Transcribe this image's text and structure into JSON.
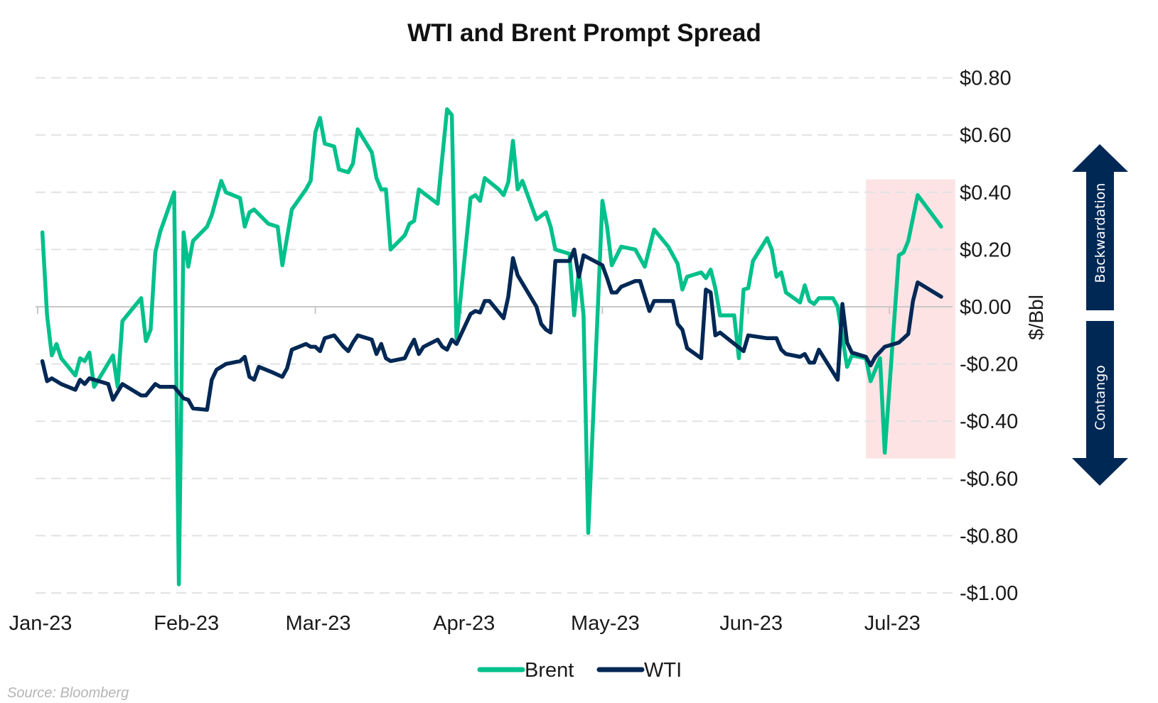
{
  "chart_data": {
    "type": "line",
    "title": "WTI and Brent Prompt Spread",
    "ylabel": "$/Bbl",
    "xlabel": "",
    "ylim": [
      -1.0,
      0.8
    ],
    "xlim": [
      "2023-01-01",
      "2023-07-15"
    ],
    "grid": true,
    "y_axis_side": "right",
    "legend_position": "bottom",
    "x_tick_labels": [
      "Jan-23",
      "Feb-23",
      "Mar-23",
      "Apr-23",
      "May-23",
      "Jun-23",
      "Jul-23"
    ],
    "x_tick_dates": [
      "2023-01-01",
      "2023-02-01",
      "2023-03-01",
      "2023-04-01",
      "2023-05-01",
      "2023-06-01",
      "2023-07-01"
    ],
    "y_ticks": [
      0.8,
      0.6,
      0.4,
      0.2,
      0.0,
      -0.2,
      -0.4,
      -0.6,
      -0.8,
      -1.0
    ],
    "y_tick_labels": [
      "$0.80",
      "$0.60",
      "$0.40",
      "$0.20",
      "$0.00",
      "-$0.20",
      "-$0.40",
      "-$0.60",
      "-$0.80",
      "-$1.00"
    ],
    "highlight": {
      "x_range": [
        "2023-06-26",
        "2023-07-15"
      ],
      "y_range": [
        -0.53,
        0.445
      ],
      "color": "#FDE3E4"
    },
    "annotations": {
      "up_arrow": "Backwardation",
      "down_arrow": "Contango",
      "arrow_color": "#002855"
    },
    "source": "Source: Bloomberg",
    "series": [
      {
        "name": "Brent",
        "color": "#00C08B",
        "points": [
          [
            "2023-01-02",
            0.26
          ],
          [
            "2023-01-03",
            -0.03
          ],
          [
            "2023-01-04",
            -0.17
          ],
          [
            "2023-01-05",
            -0.13
          ],
          [
            "2023-01-06",
            -0.18
          ],
          [
            "2023-01-09",
            -0.24
          ],
          [
            "2023-01-10",
            -0.18
          ],
          [
            "2023-01-11",
            -0.19
          ],
          [
            "2023-01-12",
            -0.16
          ],
          [
            "2023-01-13",
            -0.28
          ],
          [
            "2023-01-17",
            -0.17
          ],
          [
            "2023-01-18",
            -0.28
          ],
          [
            "2023-01-19",
            -0.05
          ],
          [
            "2023-01-23",
            0.03
          ],
          [
            "2023-01-24",
            -0.12
          ],
          [
            "2023-01-25",
            -0.08
          ],
          [
            "2023-01-26",
            0.19
          ],
          [
            "2023-01-27",
            0.26
          ],
          [
            "2023-01-30",
            0.4
          ],
          [
            "2023-01-31",
            -0.97
          ],
          [
            "2023-02-01",
            0.26
          ],
          [
            "2023-02-02",
            0.14
          ],
          [
            "2023-02-03",
            0.23
          ],
          [
            "2023-02-06",
            0.28
          ],
          [
            "2023-02-07",
            0.32
          ],
          [
            "2023-02-09",
            0.44
          ],
          [
            "2023-02-10",
            0.4
          ],
          [
            "2023-02-13",
            0.38
          ],
          [
            "2023-02-14",
            0.28
          ],
          [
            "2023-02-15",
            0.33
          ],
          [
            "2023-02-16",
            0.34
          ],
          [
            "2023-02-19",
            0.29
          ],
          [
            "2023-02-21",
            0.28
          ],
          [
            "2023-02-22",
            0.145
          ],
          [
            "2023-02-24",
            0.34
          ],
          [
            "2023-02-27",
            0.41
          ],
          [
            "2023-02-28",
            0.44
          ],
          [
            "2023-03-01",
            0.61
          ],
          [
            "2023-03-02",
            0.66
          ],
          [
            "2023-03-03",
            0.57
          ],
          [
            "2023-03-05",
            0.56
          ],
          [
            "2023-03-06",
            0.48
          ],
          [
            "2023-03-08",
            0.47
          ],
          [
            "2023-03-09",
            0.5
          ],
          [
            "2023-03-10",
            0.62
          ],
          [
            "2023-03-13",
            0.54
          ],
          [
            "2023-03-14",
            0.45
          ],
          [
            "2023-03-15",
            0.41
          ],
          [
            "2023-03-16",
            0.41
          ],
          [
            "2023-03-17",
            0.2
          ],
          [
            "2023-03-20",
            0.25
          ],
          [
            "2023-03-21",
            0.29
          ],
          [
            "2023-03-22",
            0.3
          ],
          [
            "2023-03-23",
            0.41
          ],
          [
            "2023-03-27",
            0.36
          ],
          [
            "2023-03-29",
            0.69
          ],
          [
            "2023-03-30",
            0.67
          ],
          [
            "2023-03-31",
            -0.11
          ],
          [
            "2023-04-03",
            0.38
          ],
          [
            "2023-04-04",
            0.39
          ],
          [
            "2023-04-05",
            0.37
          ],
          [
            "2023-04-06",
            0.45
          ],
          [
            "2023-04-09",
            0.41
          ],
          [
            "2023-04-10",
            0.39
          ],
          [
            "2023-04-11",
            0.435
          ],
          [
            "2023-04-12",
            0.58
          ],
          [
            "2023-04-13",
            0.41
          ],
          [
            "2023-04-14",
            0.44
          ],
          [
            "2023-04-17",
            0.305
          ],
          [
            "2023-04-19",
            0.33
          ],
          [
            "2023-04-20",
            0.28
          ],
          [
            "2023-04-21",
            0.2
          ],
          [
            "2023-04-24",
            0.185
          ],
          [
            "2023-04-25",
            -0.03
          ],
          [
            "2023-04-26",
            0.13
          ],
          [
            "2023-04-27",
            -0.03
          ],
          [
            "2023-04-28",
            -0.79
          ],
          [
            "2023-05-01",
            0.37
          ],
          [
            "2023-05-02",
            0.28
          ],
          [
            "2023-05-03",
            0.145
          ],
          [
            "2023-05-05",
            0.21
          ],
          [
            "2023-05-08",
            0.2
          ],
          [
            "2023-05-10",
            0.14
          ],
          [
            "2023-05-12",
            0.27
          ],
          [
            "2023-05-15",
            0.21
          ],
          [
            "2023-05-17",
            0.15
          ],
          [
            "2023-05-18",
            0.06
          ],
          [
            "2023-05-19",
            0.105
          ],
          [
            "2023-05-22",
            0.12
          ],
          [
            "2023-05-23",
            0.1
          ],
          [
            "2023-05-24",
            0.13
          ],
          [
            "2023-05-25",
            0.065
          ],
          [
            "2023-05-26",
            -0.03
          ],
          [
            "2023-05-29",
            -0.03
          ],
          [
            "2023-05-30",
            -0.18
          ],
          [
            "2023-05-31",
            0.06
          ],
          [
            "2023-06-01",
            0.065
          ],
          [
            "2023-06-02",
            0.16
          ],
          [
            "2023-06-05",
            0.24
          ],
          [
            "2023-06-06",
            0.2
          ],
          [
            "2023-06-07",
            0.105
          ],
          [
            "2023-06-08",
            0.12
          ],
          [
            "2023-06-09",
            0.05
          ],
          [
            "2023-06-12",
            0.015
          ],
          [
            "2023-06-13",
            0.075
          ],
          [
            "2023-06-14",
            0.02
          ],
          [
            "2023-06-15",
            0.01
          ],
          [
            "2023-06-16",
            0.03
          ],
          [
            "2023-06-19",
            0.03
          ],
          [
            "2023-06-20",
            0.0
          ],
          [
            "2023-06-22",
            -0.21
          ],
          [
            "2023-06-23",
            -0.17
          ],
          [
            "2023-06-26",
            -0.18
          ],
          [
            "2023-06-27",
            -0.26
          ],
          [
            "2023-06-29",
            -0.18
          ],
          [
            "2023-06-30",
            -0.51
          ],
          [
            "2023-07-03",
            0.18
          ],
          [
            "2023-07-04",
            0.19
          ],
          [
            "2023-07-05",
            0.23
          ],
          [
            "2023-07-07",
            0.39
          ],
          [
            "2023-07-12",
            0.28
          ]
        ]
      },
      {
        "name": "WTI",
        "color": "#002855",
        "points": [
          [
            "2023-01-02",
            -0.19
          ],
          [
            "2023-01-03",
            -0.26
          ],
          [
            "2023-01-04",
            -0.25
          ],
          [
            "2023-01-06",
            -0.27
          ],
          [
            "2023-01-09",
            -0.29
          ],
          [
            "2023-01-10",
            -0.255
          ],
          [
            "2023-01-11",
            -0.27
          ],
          [
            "2023-01-12",
            -0.25
          ],
          [
            "2023-01-16",
            -0.27
          ],
          [
            "2023-01-17",
            -0.325
          ],
          [
            "2023-01-19",
            -0.27
          ],
          [
            "2023-01-23",
            -0.31
          ],
          [
            "2023-01-24",
            -0.31
          ],
          [
            "2023-01-26",
            -0.27
          ],
          [
            "2023-01-27",
            -0.28
          ],
          [
            "2023-01-30",
            -0.28
          ],
          [
            "2023-02-01",
            -0.32
          ],
          [
            "2023-02-02",
            -0.325
          ],
          [
            "2023-02-03",
            -0.355
          ],
          [
            "2023-02-06",
            -0.36
          ],
          [
            "2023-02-07",
            -0.255
          ],
          [
            "2023-02-08",
            -0.22
          ],
          [
            "2023-02-10",
            -0.2
          ],
          [
            "2023-02-13",
            -0.19
          ],
          [
            "2023-02-14",
            -0.175
          ],
          [
            "2023-02-15",
            -0.245
          ],
          [
            "2023-02-16",
            -0.255
          ],
          [
            "2023-02-17",
            -0.21
          ],
          [
            "2023-02-20",
            -0.23
          ],
          [
            "2023-02-22",
            -0.245
          ],
          [
            "2023-02-23",
            -0.215
          ],
          [
            "2023-02-24",
            -0.15
          ],
          [
            "2023-02-27",
            -0.13
          ],
          [
            "2023-02-28",
            -0.14
          ],
          [
            "2023-03-01",
            -0.14
          ],
          [
            "2023-03-02",
            -0.155
          ],
          [
            "2023-03-03",
            -0.11
          ],
          [
            "2023-03-05",
            -0.1
          ],
          [
            "2023-03-07",
            -0.14
          ],
          [
            "2023-03-08",
            -0.155
          ],
          [
            "2023-03-09",
            -0.125
          ],
          [
            "2023-03-10",
            -0.1
          ],
          [
            "2023-03-13",
            -0.115
          ],
          [
            "2023-03-14",
            -0.165
          ],
          [
            "2023-03-15",
            -0.13
          ],
          [
            "2023-03-16",
            -0.18
          ],
          [
            "2023-03-17",
            -0.19
          ],
          [
            "2023-03-20",
            -0.18
          ],
          [
            "2023-03-21",
            -0.145
          ],
          [
            "2023-03-22",
            -0.115
          ],
          [
            "2023-03-23",
            -0.165
          ],
          [
            "2023-03-24",
            -0.14
          ],
          [
            "2023-03-27",
            -0.115
          ],
          [
            "2023-03-28",
            -0.14
          ],
          [
            "2023-03-29",
            -0.15
          ],
          [
            "2023-03-30",
            -0.115
          ],
          [
            "2023-03-31",
            -0.13
          ],
          [
            "2023-04-03",
            -0.025
          ],
          [
            "2023-04-04",
            -0.015
          ],
          [
            "2023-04-05",
            -0.02
          ],
          [
            "2023-04-06",
            0.02
          ],
          [
            "2023-04-07",
            0.02
          ],
          [
            "2023-04-10",
            -0.04
          ],
          [
            "2023-04-11",
            0.035
          ],
          [
            "2023-04-12",
            0.17
          ],
          [
            "2023-04-13",
            0.11
          ],
          [
            "2023-04-17",
            0.0
          ],
          [
            "2023-04-18",
            -0.06
          ],
          [
            "2023-04-19",
            -0.08
          ],
          [
            "2023-04-20",
            -0.09
          ],
          [
            "2023-04-21",
            0.16
          ],
          [
            "2023-04-24",
            0.16
          ],
          [
            "2023-04-25",
            0.2
          ],
          [
            "2023-04-26",
            0.105
          ],
          [
            "2023-04-27",
            0.18
          ],
          [
            "2023-05-01",
            0.145
          ],
          [
            "2023-05-02",
            0.1
          ],
          [
            "2023-05-03",
            0.05
          ],
          [
            "2023-05-04",
            0.05
          ],
          [
            "2023-05-05",
            0.07
          ],
          [
            "2023-05-08",
            0.09
          ],
          [
            "2023-05-09",
            0.09
          ],
          [
            "2023-05-11",
            -0.015
          ],
          [
            "2023-05-12",
            0.02
          ],
          [
            "2023-05-16",
            0.02
          ],
          [
            "2023-05-17",
            -0.06
          ],
          [
            "2023-05-18",
            -0.08
          ],
          [
            "2023-05-19",
            -0.145
          ],
          [
            "2023-05-22",
            -0.18
          ],
          [
            "2023-05-23",
            0.06
          ],
          [
            "2023-05-24",
            0.05
          ],
          [
            "2023-05-25",
            -0.1
          ],
          [
            "2023-05-26",
            -0.09
          ],
          [
            "2023-05-31",
            -0.155
          ],
          [
            "2023-06-01",
            -0.1
          ],
          [
            "2023-06-05",
            -0.11
          ],
          [
            "2023-06-07",
            -0.11
          ],
          [
            "2023-06-08",
            -0.15
          ],
          [
            "2023-06-09",
            -0.165
          ],
          [
            "2023-06-12",
            -0.175
          ],
          [
            "2023-06-13",
            -0.165
          ],
          [
            "2023-06-14",
            -0.195
          ],
          [
            "2023-06-15",
            -0.195
          ],
          [
            "2023-06-16",
            -0.15
          ],
          [
            "2023-06-20",
            -0.255
          ],
          [
            "2023-06-21",
            0.01
          ],
          [
            "2023-06-22",
            -0.125
          ],
          [
            "2023-06-23",
            -0.16
          ],
          [
            "2023-06-26",
            -0.175
          ],
          [
            "2023-06-27",
            -0.205
          ],
          [
            "2023-06-28",
            -0.175
          ],
          [
            "2023-06-30",
            -0.14
          ],
          [
            "2023-07-03",
            -0.125
          ],
          [
            "2023-07-05",
            -0.095
          ],
          [
            "2023-07-06",
            0.02
          ],
          [
            "2023-07-07",
            0.085
          ],
          [
            "2023-07-12",
            0.035
          ]
        ]
      }
    ]
  }
}
